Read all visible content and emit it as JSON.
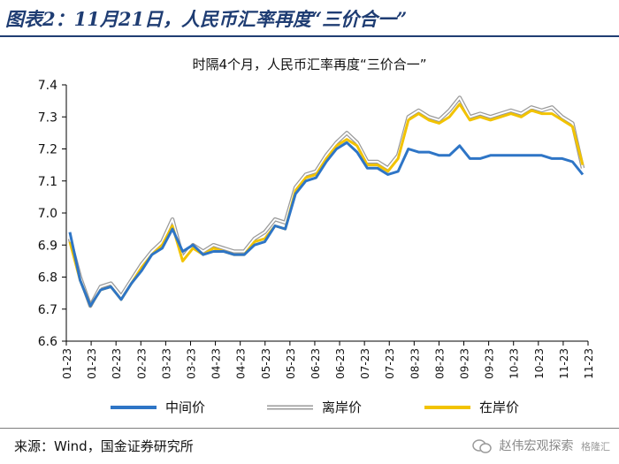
{
  "figure": {
    "title": "图表2：11月21日，人民币汇率再度“三价合一”",
    "source": "来源：Wind，国金证券研究所",
    "watermark": "赵伟宏观探索",
    "watermark_sub": "格隆汇"
  },
  "chart_data": {
    "type": "line",
    "title": "时隔4个月，人民币汇率再度“三价合一”",
    "xlabel": "",
    "ylabel": "",
    "ylim": [
      6.6,
      7.4
    ],
    "yticks": [
      6.6,
      6.7,
      6.8,
      6.9,
      7.0,
      7.1,
      7.2,
      7.3,
      7.4
    ],
    "xticks": [
      "01-23",
      "01-23",
      "02-23",
      "02-23",
      "03-23",
      "03-23",
      "04-23",
      "04-23",
      "05-23",
      "05-23",
      "06-23",
      "06-23",
      "07-23",
      "07-23",
      "08-23",
      "08-23",
      "09-23",
      "09-23",
      "10-23",
      "10-23",
      "11-23",
      "11-23"
    ],
    "grid": false,
    "legend_position": "bottom",
    "series": [
      {
        "name": "中间价",
        "color": "#2e75c6",
        "values": [
          6.94,
          6.79,
          6.71,
          6.76,
          6.77,
          6.73,
          6.78,
          6.82,
          6.87,
          6.89,
          6.95,
          6.88,
          6.9,
          6.87,
          6.88,
          6.88,
          6.87,
          6.87,
          6.9,
          6.91,
          6.96,
          6.95,
          7.06,
          7.1,
          7.11,
          7.16,
          7.2,
          7.22,
          7.19,
          7.14,
          7.14,
          7.12,
          7.13,
          7.2,
          7.19,
          7.19,
          7.18,
          7.18,
          7.21,
          7.17,
          7.17,
          7.18,
          7.18,
          7.18,
          7.18,
          7.18,
          7.18,
          7.17,
          7.17,
          7.16,
          7.12
        ]
      },
      {
        "name": "离岸价",
        "color": "#b8b8b8",
        "values": [
          6.92,
          6.8,
          6.71,
          6.77,
          6.78,
          6.74,
          6.79,
          6.84,
          6.88,
          6.91,
          6.98,
          6.86,
          6.9,
          6.88,
          6.9,
          6.89,
          6.88,
          6.88,
          6.92,
          6.94,
          6.98,
          6.97,
          7.08,
          7.12,
          7.13,
          7.18,
          7.22,
          7.25,
          7.22,
          7.16,
          7.16,
          7.14,
          7.18,
          7.3,
          7.32,
          7.3,
          7.29,
          7.32,
          7.36,
          7.3,
          7.31,
          7.3,
          7.31,
          7.32,
          7.31,
          7.33,
          7.32,
          7.33,
          7.3,
          7.28,
          7.14
        ]
      },
      {
        "name": "在岸价",
        "color": "#f2c300",
        "values": [
          6.91,
          6.79,
          6.71,
          6.76,
          6.77,
          6.73,
          6.78,
          6.83,
          6.87,
          6.9,
          6.96,
          6.85,
          6.89,
          6.87,
          6.89,
          6.88,
          6.87,
          6.87,
          6.91,
          6.92,
          6.96,
          6.95,
          7.07,
          7.11,
          7.12,
          7.17,
          7.21,
          7.23,
          7.21,
          7.15,
          7.15,
          7.13,
          7.17,
          7.29,
          7.31,
          7.29,
          7.28,
          7.3,
          7.34,
          7.29,
          7.3,
          7.29,
          7.3,
          7.31,
          7.3,
          7.32,
          7.31,
          7.31,
          7.29,
          7.27,
          7.15
        ]
      }
    ]
  }
}
